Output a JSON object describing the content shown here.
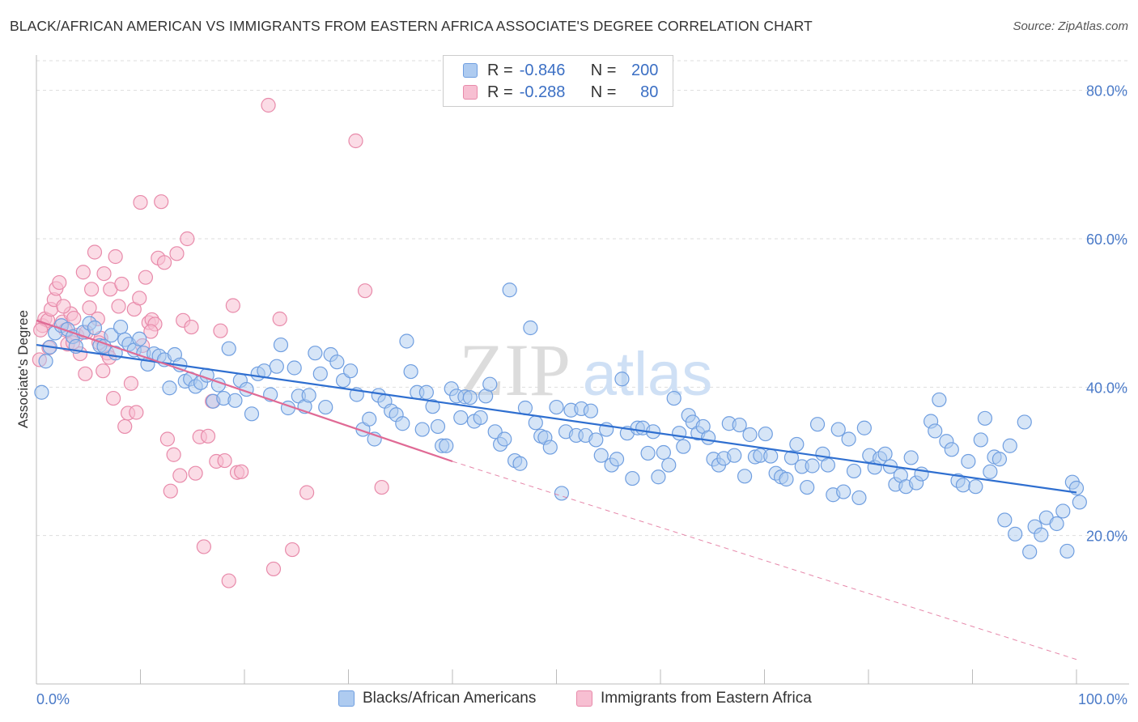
{
  "header": {
    "title": "BLACK/AFRICAN AMERICAN VS IMMIGRANTS FROM EASTERN AFRICA ASSOCIATE'S DEGREE CORRELATION CHART",
    "source": "Source: ZipAtlas.com"
  },
  "watermark": {
    "part1": "ZIP",
    "part2": "atlas"
  },
  "legend": {
    "rows": [
      {
        "r_label": "R =",
        "r_value": "-0.846",
        "n_label": "N =",
        "n_value": "200",
        "color": "#aecbf0",
        "border": "#6f9ee0"
      },
      {
        "r_label": "R =",
        "r_value": "-0.288",
        "n_label": "N =",
        "n_value": "80",
        "color": "#f7bfd2",
        "border": "#e88aaa"
      }
    ]
  },
  "bottom_legend": {
    "items": [
      {
        "label": "Blacks/African Americans",
        "color": "#aecbf0",
        "border": "#6f9ee0"
      },
      {
        "label": "Immigrants from Eastern Africa",
        "color": "#f7bfd2",
        "border": "#e88aaa"
      }
    ]
  },
  "chart_data": {
    "type": "scatter",
    "title": "BLACK/AFRICAN AMERICAN VS IMMIGRANTS FROM EASTERN AFRICA ASSOCIATE'S DEGREE CORRELATION CHART",
    "xlabel": "",
    "ylabel": "Associate's Degree",
    "xlim": [
      0,
      100
    ],
    "ylim": [
      0,
      84
    ],
    "x_tick_labels": [
      "0.0%",
      "100.0%"
    ],
    "y_ticks": [
      20,
      40,
      60,
      80
    ],
    "y_tick_labels": [
      "20.0%",
      "40.0%",
      "60.0%",
      "80.0%"
    ],
    "grid": true,
    "legend_position": "top-center",
    "colors": {
      "blue": "#6f9ee0",
      "blue_fill": "#aecbf0",
      "blue_line": "#2f6fd0",
      "pink": "#e88aaa",
      "pink_fill": "#f7bfd2",
      "pink_line": "#e06a95"
    },
    "series": [
      {
        "name": "Blacks/African Americans",
        "trend": {
          "x0": 0,
          "y0": 45.7,
          "x1": 100,
          "y1": 25.8
        },
        "points": [
          [
            0.5,
            39.3
          ],
          [
            0.9,
            43.5
          ],
          [
            1.3,
            45.4
          ],
          [
            1.8,
            47.3
          ],
          [
            2.4,
            48.3
          ],
          [
            3.0,
            47.8
          ],
          [
            3.5,
            46.8
          ],
          [
            3.8,
            45.5
          ],
          [
            4.5,
            47.4
          ],
          [
            5.1,
            48.6
          ],
          [
            5.6,
            48.0
          ],
          [
            6.1,
            45.6
          ],
          [
            6.5,
            45.5
          ],
          [
            7.2,
            47.0
          ],
          [
            7.6,
            44.6
          ],
          [
            8.1,
            48.1
          ],
          [
            8.5,
            46.4
          ],
          [
            8.9,
            45.8
          ],
          [
            9.4,
            45.0
          ],
          [
            9.9,
            46.5
          ],
          [
            10.3,
            44.6
          ],
          [
            10.7,
            43.1
          ],
          [
            11.3,
            44.5
          ],
          [
            11.8,
            44.2
          ],
          [
            12.3,
            43.7
          ],
          [
            12.8,
            39.9
          ],
          [
            13.3,
            44.4
          ],
          [
            13.8,
            43.0
          ],
          [
            14.3,
            40.8
          ],
          [
            14.8,
            41.1
          ],
          [
            15.3,
            40.1
          ],
          [
            15.8,
            40.6
          ],
          [
            16.4,
            41.6
          ],
          [
            17.0,
            38.1
          ],
          [
            17.5,
            40.3
          ],
          [
            18.0,
            38.5
          ],
          [
            18.5,
            45.2
          ],
          [
            19.1,
            38.2
          ],
          [
            19.6,
            40.9
          ],
          [
            20.2,
            39.7
          ],
          [
            20.7,
            36.4
          ],
          [
            21.3,
            41.8
          ],
          [
            21.9,
            42.2
          ],
          [
            22.5,
            39.0
          ],
          [
            23.1,
            42.8
          ],
          [
            23.5,
            45.7
          ],
          [
            24.2,
            37.2
          ],
          [
            24.8,
            42.6
          ],
          [
            25.2,
            38.8
          ],
          [
            25.8,
            37.4
          ],
          [
            26.2,
            38.9
          ],
          [
            26.8,
            44.6
          ],
          [
            27.3,
            41.8
          ],
          [
            27.8,
            37.3
          ],
          [
            28.3,
            44.4
          ],
          [
            28.9,
            43.4
          ],
          [
            29.5,
            40.9
          ],
          [
            30.2,
            42.2
          ],
          [
            30.8,
            39.0
          ],
          [
            31.4,
            34.3
          ],
          [
            32.0,
            35.7
          ],
          [
            32.5,
            33.0
          ],
          [
            32.9,
            38.9
          ],
          [
            33.5,
            38.1
          ],
          [
            34.1,
            36.8
          ],
          [
            34.6,
            36.3
          ],
          [
            35.2,
            35.1
          ],
          [
            35.6,
            46.2
          ],
          [
            36.0,
            42.1
          ],
          [
            36.6,
            39.3
          ],
          [
            37.1,
            34.3
          ],
          [
            37.5,
            39.3
          ],
          [
            38.1,
            37.4
          ],
          [
            38.6,
            34.7
          ],
          [
            39.0,
            32.1
          ],
          [
            39.4,
            32.1
          ],
          [
            39.9,
            39.8
          ],
          [
            40.4,
            38.8
          ],
          [
            40.8,
            35.9
          ],
          [
            41.2,
            38.7
          ],
          [
            41.7,
            38.6
          ],
          [
            42.1,
            35.4
          ],
          [
            42.7,
            35.9
          ],
          [
            43.2,
            38.8
          ],
          [
            43.6,
            40.4
          ],
          [
            44.1,
            34.0
          ],
          [
            44.6,
            32.3
          ],
          [
            45.0,
            33.0
          ],
          [
            45.5,
            53.1
          ],
          [
            46.0,
            30.1
          ],
          [
            46.5,
            29.7
          ],
          [
            47.0,
            37.2
          ],
          [
            47.5,
            48.0
          ],
          [
            48.0,
            35.2
          ],
          [
            48.5,
            33.4
          ],
          [
            48.9,
            33.2
          ],
          [
            49.4,
            31.9
          ],
          [
            50.0,
            37.3
          ],
          [
            50.5,
            25.7
          ],
          [
            50.9,
            34.0
          ],
          [
            51.4,
            36.9
          ],
          [
            51.9,
            33.5
          ],
          [
            52.4,
            37.1
          ],
          [
            52.8,
            33.5
          ],
          [
            53.3,
            36.8
          ],
          [
            53.8,
            32.9
          ],
          [
            54.3,
            30.8
          ],
          [
            54.8,
            34.3
          ],
          [
            55.3,
            29.5
          ],
          [
            55.8,
            30.3
          ],
          [
            56.3,
            41.1
          ],
          [
            56.8,
            33.8
          ],
          [
            57.3,
            27.7
          ],
          [
            57.8,
            34.5
          ],
          [
            58.3,
            34.5
          ],
          [
            58.8,
            31.1
          ],
          [
            59.3,
            34.0
          ],
          [
            59.8,
            27.9
          ],
          [
            60.3,
            31.2
          ],
          [
            60.8,
            29.5
          ],
          [
            61.3,
            38.5
          ],
          [
            61.8,
            33.8
          ],
          [
            62.2,
            32.0
          ],
          [
            62.7,
            36.2
          ],
          [
            63.1,
            35.3
          ],
          [
            63.6,
            33.8
          ],
          [
            64.1,
            34.7
          ],
          [
            64.6,
            33.2
          ],
          [
            65.1,
            30.3
          ],
          [
            65.6,
            29.5
          ],
          [
            66.1,
            30.4
          ],
          [
            66.6,
            35.1
          ],
          [
            67.1,
            30.8
          ],
          [
            67.6,
            34.9
          ],
          [
            68.1,
            28.0
          ],
          [
            68.6,
            33.6
          ],
          [
            69.1,
            30.6
          ],
          [
            69.6,
            30.8
          ],
          [
            70.1,
            33.7
          ],
          [
            70.6,
            30.7
          ],
          [
            71.1,
            28.4
          ],
          [
            71.6,
            27.9
          ],
          [
            72.1,
            27.6
          ],
          [
            72.6,
            30.5
          ],
          [
            73.1,
            32.3
          ],
          [
            73.6,
            29.3
          ],
          [
            74.1,
            26.5
          ],
          [
            74.6,
            29.4
          ],
          [
            75.1,
            35.0
          ],
          [
            75.6,
            31.0
          ],
          [
            76.1,
            29.5
          ],
          [
            76.6,
            25.5
          ],
          [
            77.1,
            34.3
          ],
          [
            77.6,
            25.9
          ],
          [
            78.1,
            33.0
          ],
          [
            78.6,
            28.7
          ],
          [
            79.1,
            25.1
          ],
          [
            79.6,
            34.5
          ],
          [
            80.1,
            30.8
          ],
          [
            80.6,
            29.2
          ],
          [
            81.1,
            30.4
          ],
          [
            81.6,
            31.0
          ],
          [
            82.1,
            29.3
          ],
          [
            82.6,
            26.9
          ],
          [
            83.1,
            28.1
          ],
          [
            83.6,
            26.6
          ],
          [
            84.1,
            30.5
          ],
          [
            84.6,
            27.1
          ],
          [
            85.1,
            28.3
          ],
          [
            86.0,
            35.4
          ],
          [
            86.4,
            34.1
          ],
          [
            86.8,
            38.3
          ],
          [
            87.5,
            32.7
          ],
          [
            88.0,
            31.6
          ],
          [
            88.6,
            27.4
          ],
          [
            89.1,
            26.8
          ],
          [
            89.6,
            30.0
          ],
          [
            90.3,
            26.6
          ],
          [
            90.8,
            32.9
          ],
          [
            91.2,
            35.8
          ],
          [
            91.7,
            28.6
          ],
          [
            92.1,
            30.6
          ],
          [
            92.6,
            30.3
          ],
          [
            93.1,
            22.1
          ],
          [
            93.6,
            32.1
          ],
          [
            94.1,
            20.2
          ],
          [
            95.0,
            35.3
          ],
          [
            95.5,
            17.8
          ],
          [
            96.0,
            21.2
          ],
          [
            96.6,
            20.1
          ],
          [
            97.1,
            22.4
          ],
          [
            98.1,
            21.6
          ],
          [
            98.7,
            23.3
          ],
          [
            99.1,
            17.9
          ],
          [
            99.6,
            27.2
          ],
          [
            100.0,
            26.4
          ],
          [
            100.3,
            24.5
          ]
        ]
      },
      {
        "name": "Immigrants from Eastern Africa",
        "trend": {
          "x0": 0,
          "y0": 49.0,
          "x1": 40,
          "y1": 30.0,
          "dash_x1": 100,
          "dash_y1": 3.3
        },
        "points": [
          [
            0.3,
            43.7
          ],
          [
            0.6,
            48.3
          ],
          [
            0.8,
            49.2
          ],
          [
            1.1,
            49.0
          ],
          [
            1.4,
            50.5
          ],
          [
            1.7,
            51.8
          ],
          [
            1.9,
            53.3
          ],
          [
            2.2,
            54.1
          ],
          [
            2.5,
            48.8
          ],
          [
            2.8,
            47.7
          ],
          [
            3.0,
            45.8
          ],
          [
            3.3,
            49.9
          ],
          [
            3.6,
            49.3
          ],
          [
            3.9,
            47.0
          ],
          [
            4.2,
            44.5
          ],
          [
            4.5,
            55.5
          ],
          [
            4.8,
            47.4
          ],
          [
            5.1,
            50.7
          ],
          [
            5.3,
            53.2
          ],
          [
            5.6,
            58.2
          ],
          [
            5.9,
            49.2
          ],
          [
            6.2,
            46.6
          ],
          [
            6.5,
            55.3
          ],
          [
            6.8,
            44.6
          ],
          [
            7.1,
            53.2
          ],
          [
            7.4,
            38.5
          ],
          [
            7.6,
            57.6
          ],
          [
            7.9,
            50.9
          ],
          [
            8.2,
            53.9
          ],
          [
            8.5,
            34.7
          ],
          [
            8.8,
            36.5
          ],
          [
            9.1,
            40.5
          ],
          [
            9.4,
            50.5
          ],
          [
            9.6,
            36.6
          ],
          [
            9.9,
            52.0
          ],
          [
            10.2,
            45.6
          ],
          [
            10.5,
            54.8
          ],
          [
            10.8,
            48.7
          ],
          [
            11.1,
            49.1
          ],
          [
            11.4,
            48.5
          ],
          [
            11.7,
            57.4
          ],
          [
            12.0,
            65.0
          ],
          [
            12.3,
            56.8
          ],
          [
            12.6,
            33.0
          ],
          [
            12.9,
            26.0
          ],
          [
            13.2,
            30.9
          ],
          [
            13.5,
            58.0
          ],
          [
            13.8,
            28.1
          ],
          [
            14.1,
            49.0
          ],
          [
            14.5,
            60.0
          ],
          [
            14.9,
            48.1
          ],
          [
            15.3,
            28.4
          ],
          [
            15.7,
            33.3
          ],
          [
            16.1,
            18.5
          ],
          [
            16.5,
            33.4
          ],
          [
            16.9,
            38.1
          ],
          [
            17.3,
            30.0
          ],
          [
            17.7,
            47.6
          ],
          [
            18.1,
            30.1
          ],
          [
            18.5,
            13.9
          ],
          [
            18.9,
            51.0
          ],
          [
            19.3,
            28.5
          ],
          [
            19.7,
            28.6
          ],
          [
            22.3,
            78.0
          ],
          [
            22.8,
            15.5
          ],
          [
            23.4,
            49.2
          ],
          [
            24.6,
            18.1
          ],
          [
            26.0,
            25.8
          ],
          [
            30.7,
            73.2
          ],
          [
            31.6,
            53.0
          ],
          [
            33.2,
            26.5
          ],
          [
            0.4,
            47.7
          ],
          [
            1.2,
            45.3
          ],
          [
            2.6,
            50.9
          ],
          [
            3.5,
            46.0
          ],
          [
            4.7,
            41.8
          ],
          [
            6.0,
            46.0
          ],
          [
            6.4,
            42.2
          ],
          [
            7.0,
            44.0
          ],
          [
            10.0,
            64.9
          ],
          [
            11.0,
            47.5
          ]
        ]
      }
    ]
  }
}
